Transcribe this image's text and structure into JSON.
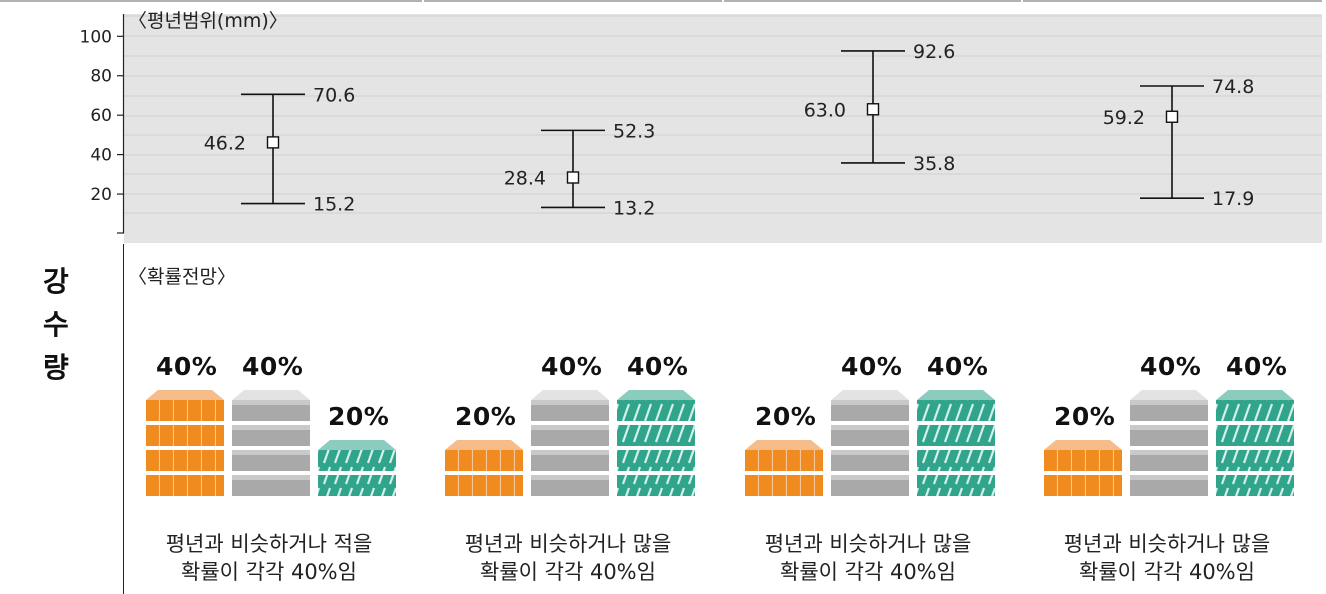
{
  "section_labels": {
    "range": "〈평년범위(mm)〉",
    "probability": "〈확률전망〉"
  },
  "side_label_chars": [
    "강",
    "수",
    "량"
  ],
  "chart_data": {
    "type": "error-bar",
    "title": "〈평년범위(mm)〉",
    "ylabel": "",
    "yticks": [
      20,
      40,
      60,
      80,
      100
    ],
    "ylim": [
      0,
      108
    ],
    "grid": true,
    "series": [
      {
        "mid": 46.2,
        "high": 70.6,
        "low": 15.2
      },
      {
        "mid": 28.4,
        "high": 52.3,
        "low": 13.2
      },
      {
        "mid": 63.0,
        "high": 92.6,
        "low": 35.8
      },
      {
        "mid": 59.2,
        "high": 74.8,
        "low": 17.9
      }
    ],
    "value_labels": [
      {
        "mid": "46.2",
        "high": "70.6",
        "low": "15.2"
      },
      {
        "mid": "28.4",
        "high": "52.3",
        "low": "13.2"
      },
      {
        "mid": "63.0",
        "high": "92.6",
        "low": "35.8"
      },
      {
        "mid": "59.2",
        "high": "74.8",
        "low": "17.9"
      }
    ]
  },
  "probability": [
    {
      "below": "40%",
      "normal": "40%",
      "above": "20%",
      "below_v": 40,
      "normal_v": 40,
      "above_v": 20,
      "caption1": "평년과 비슷하거나 적을",
      "caption2": "확률이 각각 40%임"
    },
    {
      "below": "20%",
      "normal": "40%",
      "above": "40%",
      "below_v": 20,
      "normal_v": 40,
      "above_v": 40,
      "caption1": "평년과 비슷하거나 많을",
      "caption2": "확률이 각각 40%임"
    },
    {
      "below": "20%",
      "normal": "40%",
      "above": "40%",
      "below_v": 20,
      "normal_v": 40,
      "above_v": 40,
      "caption1": "평년과 비슷하거나 많을",
      "caption2": "확률이 각각 40%임"
    },
    {
      "below": "20%",
      "normal": "40%",
      "above": "40%",
      "below_v": 20,
      "normal_v": 40,
      "above_v": 40,
      "caption1": "평년과 비슷하거나 많을",
      "caption2": "확률이 각각 40%임"
    }
  ],
  "colors": {
    "plot_bg": "#e4e4e4",
    "below_top": "#f6bd8a",
    "below_side": "#ef8b1f",
    "normal_top": "#e3e3e3",
    "normal_side": "#a9a9a9",
    "above_top": "#8cccbf",
    "above_side": "#31a58c"
  }
}
